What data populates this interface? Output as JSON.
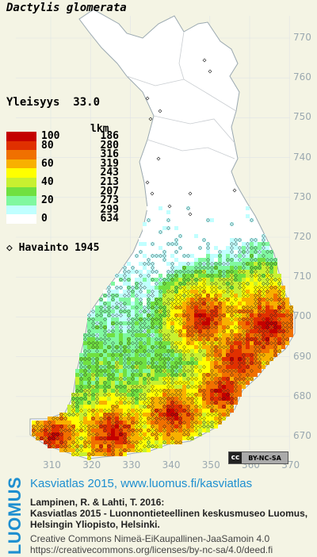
{
  "species": "Dactylis glomerata",
  "frequency": {
    "label": "Yleisyys",
    "value": "33.0"
  },
  "legend": {
    "count_header": "lkm",
    "classes": [
      {
        "label": "100",
        "color": "#c40000",
        "count": "186"
      },
      {
        "label": "80",
        "color": "#e03000",
        "count": "280"
      },
      {
        "label": "",
        "color": "#f07000",
        "count": "316"
      },
      {
        "label": "60",
        "color": "#f8b000",
        "count": "319"
      },
      {
        "label": "",
        "color": "#ffff00",
        "count": "243"
      },
      {
        "label": "40",
        "color": "#c8f030",
        "count": "213"
      },
      {
        "label": "",
        "color": "#70e040",
        "count": "207"
      },
      {
        "label": "20",
        "color": "#80f8a0",
        "count": "273"
      },
      {
        "label": "",
        "color": "#c0ffff",
        "count": "299"
      },
      {
        "label": "0",
        "color": "#ffffff",
        "count": "634"
      }
    ]
  },
  "observation": {
    "symbol": "◇",
    "label": "Havainto",
    "year": "1945"
  },
  "grid": {
    "y_labels": [
      "770",
      "760",
      "750",
      "740",
      "730",
      "720",
      "710",
      "700",
      "690",
      "680",
      "670"
    ],
    "x_labels": [
      "310",
      "320",
      "330",
      "340",
      "350",
      "360",
      "370"
    ]
  },
  "license_badge": {
    "cc": "cc",
    "text": "BY-NC-SA"
  },
  "footer": {
    "brand": "LUOMUS",
    "title": "Kasviatlas 2015, www.luomus.fi/kasviatlas",
    "citation_line1": "Lampinen, R. & Lahti, T. 2016:",
    "citation_line2": "Kasviatlas 2015 - Luonnontieteellinen keskusmuseo Luomus,",
    "citation_line3": "Helsingin Yliopisto, Helsinki.",
    "license_line1": "Creative Commons Nimeä-EiKaupallinen-JaaSamoin 4.0",
    "license_line2": "https://creativecommons.org/licenses/by-nc-sa/4.0/deed.fi"
  },
  "colors": {
    "background": "#f4f4e4",
    "map_land": "#ffffff",
    "map_outline": "#9aa8b0",
    "brand_blue": "#1e8fd0"
  }
}
